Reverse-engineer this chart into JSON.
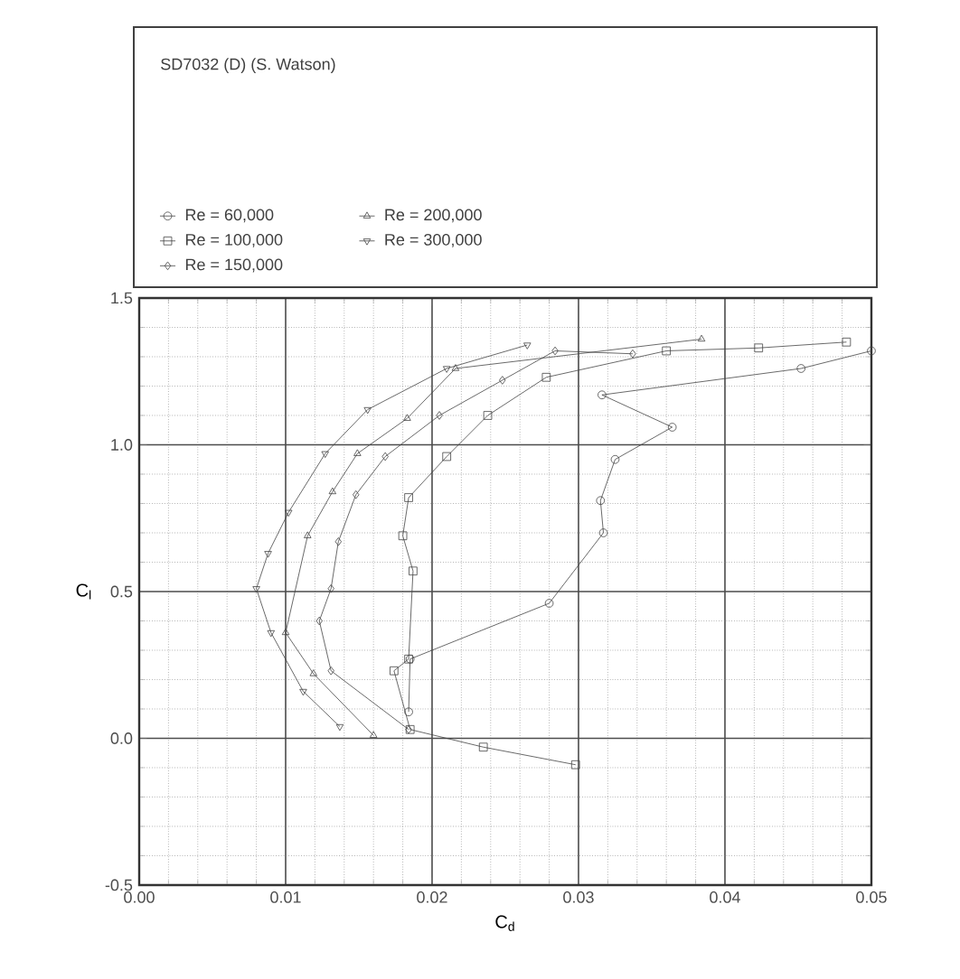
{
  "chart_data": {
    "type": "line",
    "title": "SD7032 (D) (S. Watson)",
    "xlabel": "C$_{d}$",
    "ylabel": "C$_{l}$",
    "xlim": [
      0,
      0.05
    ],
    "ylim": [
      -0.5,
      1.5
    ],
    "xticks": [
      {
        "value": 0,
        "label": "0.00"
      },
      {
        "value": 0.01,
        "label": "0.01"
      },
      {
        "value": 0.02,
        "label": "0.02"
      },
      {
        "value": 0.03,
        "label": "0.03"
      },
      {
        "value": 0.04,
        "label": "0.04"
      },
      {
        "value": 0.05,
        "label": "0.05"
      }
    ],
    "yticks": [
      {
        "value": -0.5,
        "label": "-0.5"
      },
      {
        "value": 0,
        "label": "0.0"
      },
      {
        "value": 0.5,
        "label": "0.5"
      },
      {
        "value": 1.0,
        "label": "1.0"
      },
      {
        "value": 1.5,
        "label": "1.5"
      }
    ],
    "grid": true,
    "legend": "top",
    "line_style": "solid",
    "series": [
      {
        "name": "Re = 60,000",
        "color": "#444444",
        "marker": "circle",
        "x": [
          0.0184,
          0.0185,
          0.028,
          0.0317,
          0.0315,
          0.0325,
          0.0364,
          0.0316,
          0.0452,
          0.05
        ],
        "values": [
          0.09,
          0.27,
          0.46,
          0.7,
          0.81,
          0.95,
          1.06,
          1.17,
          1.26,
          1.32
        ]
      },
      {
        "name": "Re = 100,000",
        "color": "#444444",
        "marker": "square",
        "x": [
          0.0298,
          0.0235,
          0.0185,
          0.0174,
          0.0184,
          0.0187,
          0.018,
          0.0184,
          0.021,
          0.0238,
          0.0278,
          0.036,
          0.0423,
          0.0483
        ],
        "values": [
          -0.09,
          -0.03,
          0.03,
          0.23,
          0.27,
          0.57,
          0.69,
          0.82,
          0.96,
          1.1,
          1.23,
          1.32,
          1.33,
          1.35
        ]
      },
      {
        "name": "Re = 150,000",
        "color": "#444444",
        "marker": "diamond",
        "x": [
          0.0184,
          0.0131,
          0.0123,
          0.0131,
          0.0136,
          0.0148,
          0.0168,
          0.0205,
          0.0248,
          0.0284,
          0.0337
        ],
        "values": [
          0.03,
          0.23,
          0.4,
          0.51,
          0.67,
          0.83,
          0.96,
          1.1,
          1.22,
          1.32,
          1.31
        ]
      },
      {
        "name": "Re = 200,000",
        "color": "#444444",
        "marker": "triangle",
        "x": [
          0.016,
          0.0119,
          0.01,
          0.0115,
          0.0132,
          0.0149,
          0.0183,
          0.0216,
          0.0384
        ],
        "values": [
          0.01,
          0.22,
          0.36,
          0.69,
          0.84,
          0.97,
          1.09,
          1.26,
          1.36
        ]
      },
      {
        "name": "Re = 300,000",
        "color": "#444444",
        "marker": "triangle down",
        "x": [
          0.0137,
          0.0112,
          0.009,
          0.008,
          0.0088,
          0.0102,
          0.0127,
          0.0156,
          0.021,
          0.0265
        ],
        "values": [
          0.04,
          0.16,
          0.36,
          0.51,
          0.63,
          0.77,
          0.97,
          1.12,
          1.26,
          1.34
        ]
      }
    ]
  }
}
